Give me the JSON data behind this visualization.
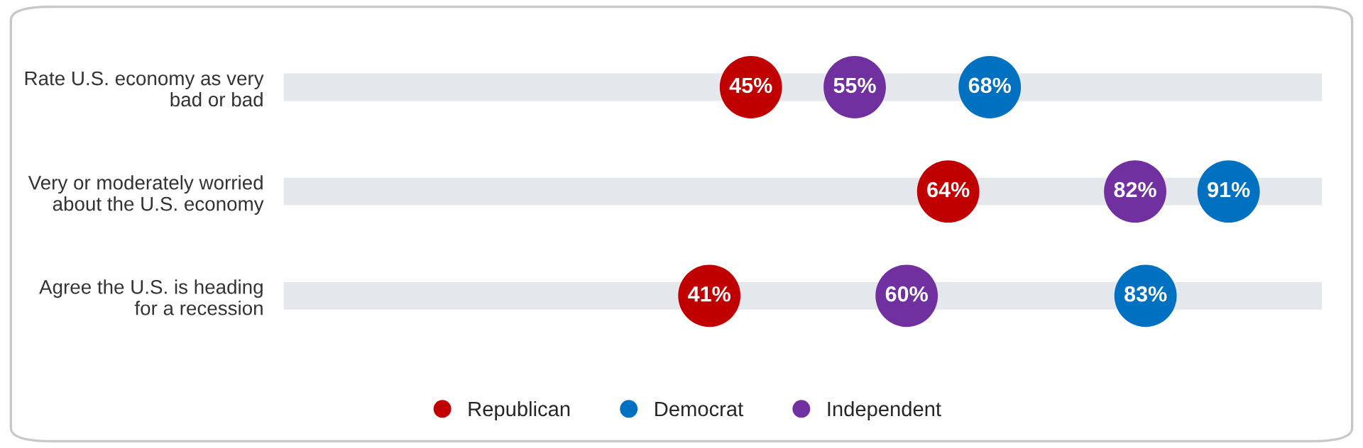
{
  "chart_data": {
    "type": "scatter",
    "orientation": "horizontal",
    "categories": [
      "Rate U.S. economy as very bad or bad",
      "Very or moderately worried about the U.S. economy",
      "Agree the U.S. is heading for a recession"
    ],
    "series": [
      {
        "name": "Republican",
        "color": "#c00000",
        "values": [
          45,
          64,
          41
        ],
        "value_labels": [
          "45%",
          "64%",
          "41%"
        ]
      },
      {
        "name": "Democrat",
        "color": "#0070c0",
        "values": [
          68,
          91,
          83
        ],
        "value_labels": [
          "68%",
          "91%",
          "83%"
        ]
      },
      {
        "name": "Independent",
        "color": "#7030a0",
        "values": [
          55,
          82,
          60
        ],
        "value_labels": [
          "55%",
          "82%",
          "60%"
        ]
      }
    ],
    "xlim": [
      0,
      100
    ],
    "grid": "y",
    "legend": "bottom",
    "marker": "circle",
    "tick_labels": "y"
  }
}
